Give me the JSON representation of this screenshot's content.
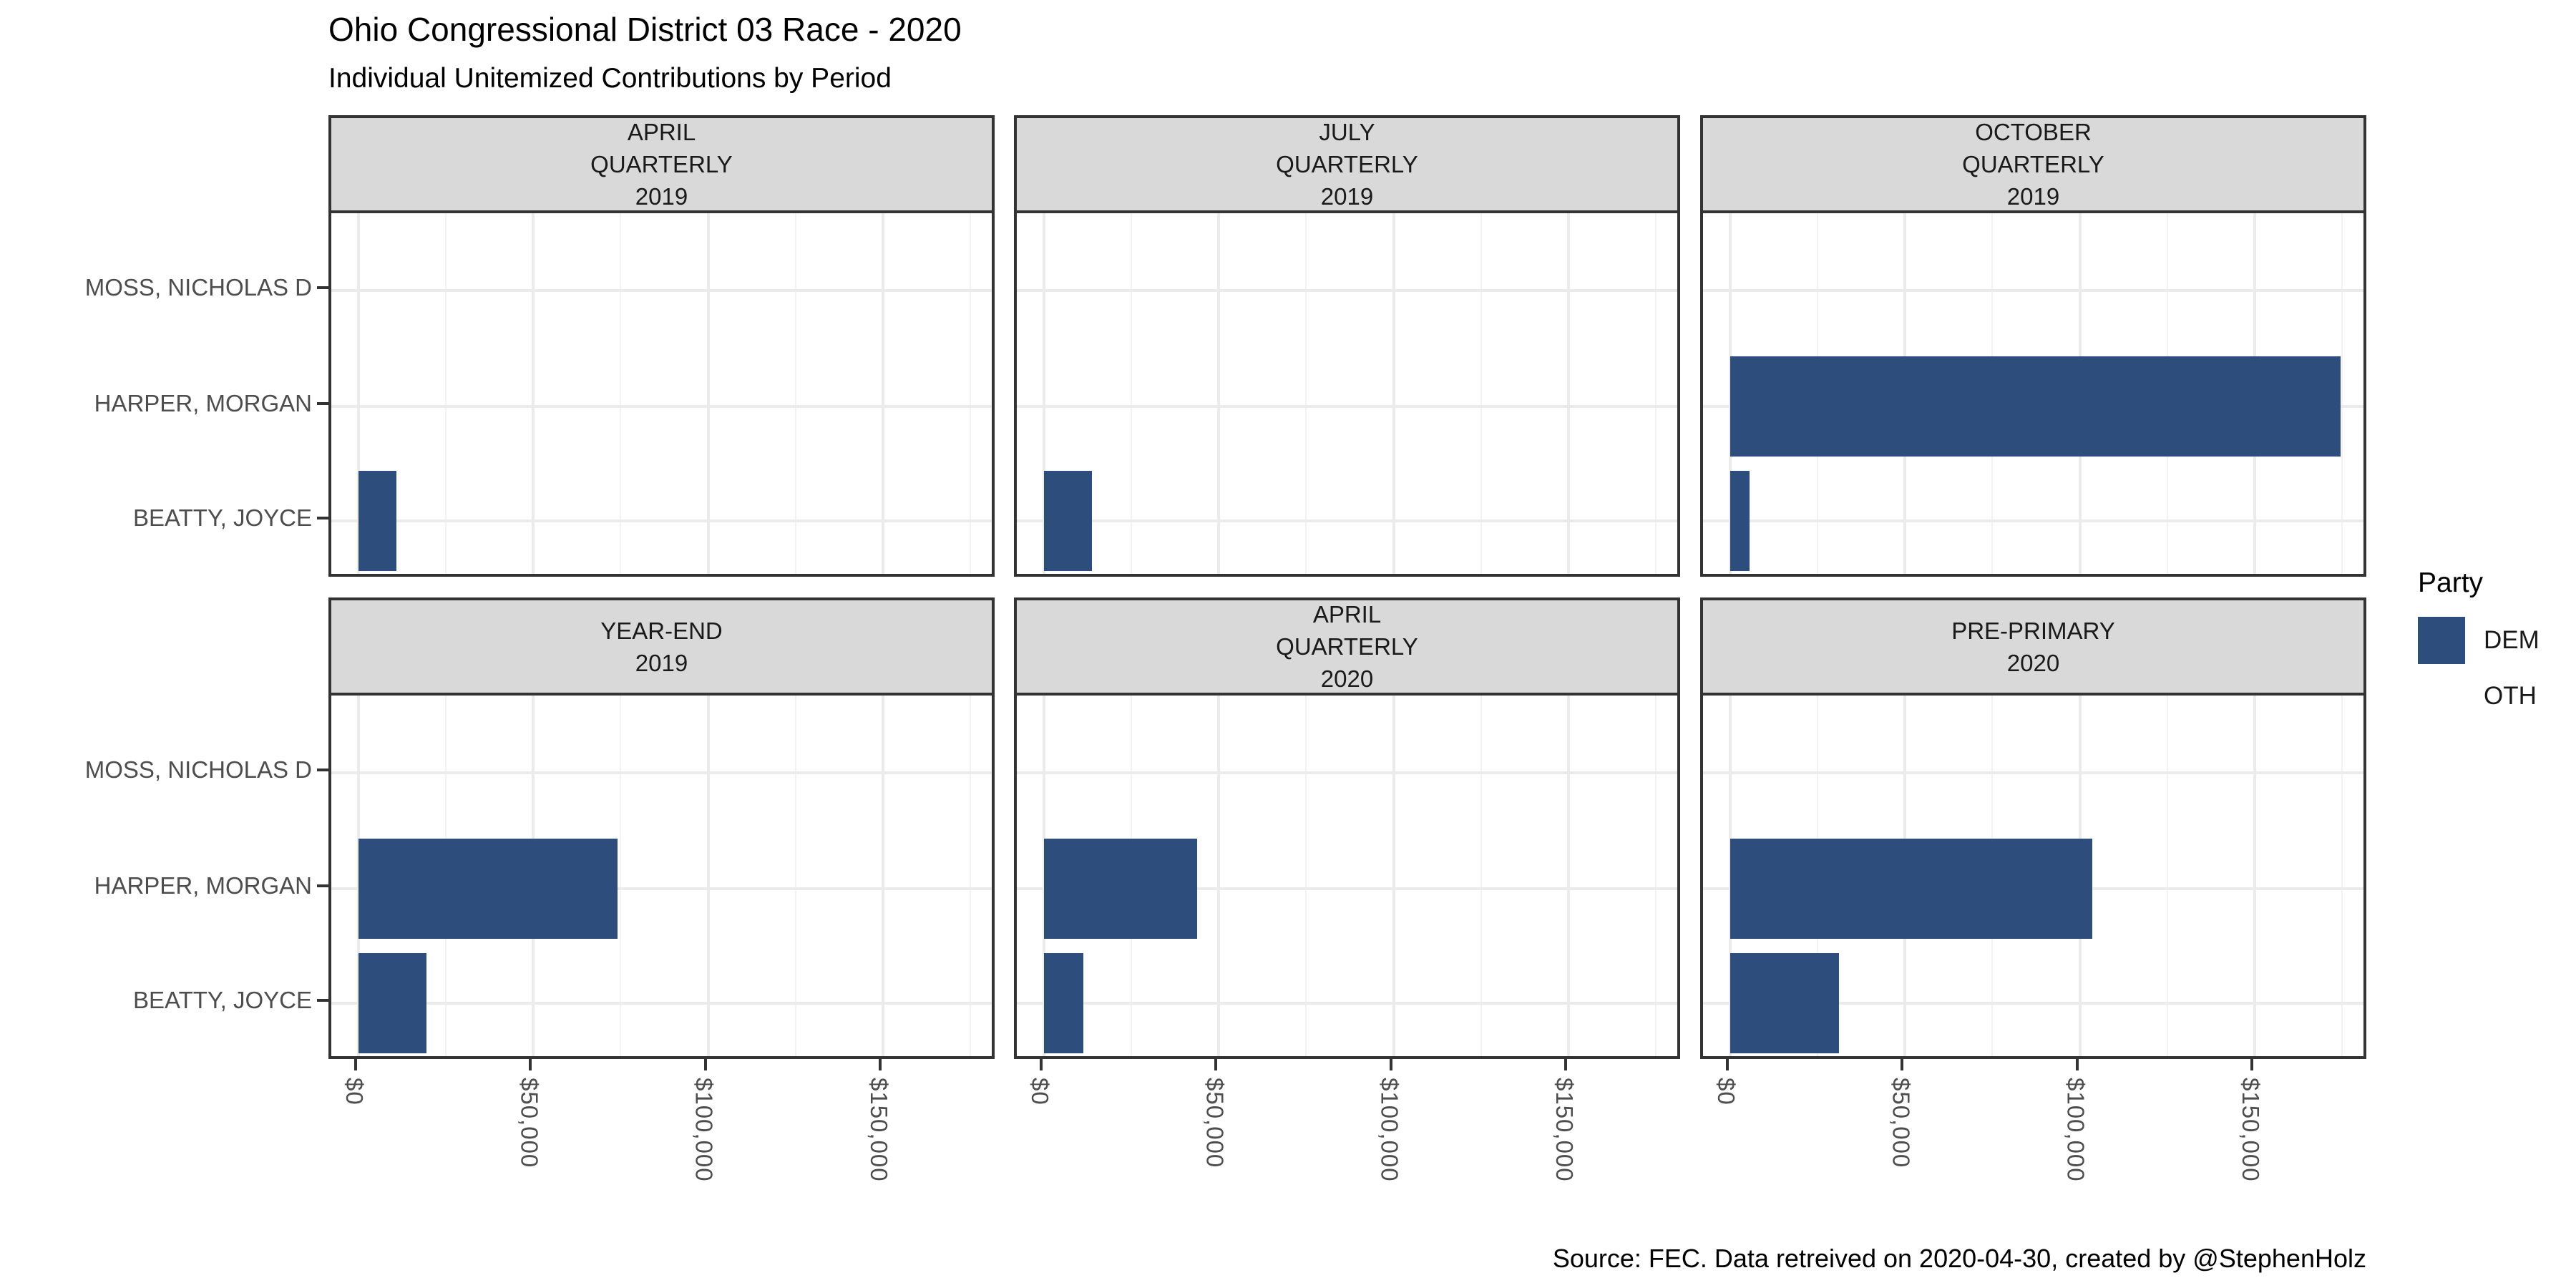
{
  "title": "Ohio Congressional District 03 Race - 2020",
  "subtitle": "Individual Unitemized Contributions by Period",
  "caption": "Source: FEC. Data retreived on 2020-04-30, created by @StephenHolz",
  "legend": {
    "title": "Party",
    "entries": [
      {
        "label": "DEM",
        "color": "#2d4d7c"
      },
      {
        "label": "OTH",
        "color": "#ffffff"
      }
    ]
  },
  "chart_data": {
    "type": "bar",
    "orientation": "horizontal",
    "title": "Ohio Congressional District 03 Race - 2020",
    "subtitle": "Individual Unitemized Contributions by Period",
    "categories": [
      "MOSS, NICHOLAS D",
      "HARPER, MORGAN",
      "BEATTY, JOYCE"
    ],
    "category_parties": {
      "MOSS, NICHOLAS D": "OTH",
      "HARPER, MORGAN": "DEM",
      "BEATTY, JOYCE": "DEM"
    },
    "party_colors": {
      "DEM": "#2d4d7c",
      "OTH": "#ffffff"
    },
    "x_tick_labels": [
      "$0",
      "$50,000",
      "$100,000",
      "$150,000"
    ],
    "x_tick_values": [
      0,
      50000,
      100000,
      150000
    ],
    "x_minor_values": [
      25000,
      75000,
      125000,
      175000
    ],
    "xlim": [
      -8700,
      183000
    ],
    "grid": true,
    "legend_position": "right",
    "facets": [
      {
        "label_lines": [
          "APRIL",
          "QUARTERLY",
          "2019"
        ],
        "values": [
          0,
          0,
          10900
        ]
      },
      {
        "label_lines": [
          "JULY",
          "QUARTERLY",
          "2019"
        ],
        "values": [
          0,
          0,
          13700
        ]
      },
      {
        "label_lines": [
          "OCTOBER",
          "QUARTERLY",
          "2019"
        ],
        "values": [
          0,
          174600,
          5500
        ]
      },
      {
        "label_lines": [
          "YEAR-END",
          "2019"
        ],
        "values": [
          0,
          74100,
          19400
        ]
      },
      {
        "label_lines": [
          "APRIL",
          "QUARTERLY",
          "2020"
        ],
        "values": [
          0,
          43800,
          11300
        ]
      },
      {
        "label_lines": [
          "PRE-PRIMARY",
          "2020"
        ],
        "values": [
          0,
          103600,
          31100
        ]
      }
    ]
  }
}
